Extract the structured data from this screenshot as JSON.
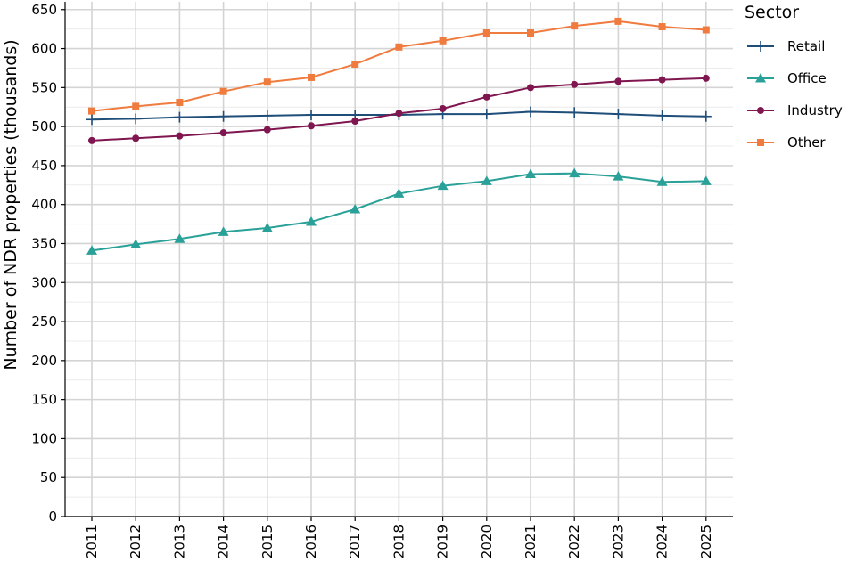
{
  "chart_data": {
    "type": "line",
    "title": "",
    "xlabel": "",
    "ylabel": "Number of NDR properties (thousands)",
    "x": [
      "2011",
      "2012",
      "2013",
      "2014",
      "2015",
      "2016",
      "2017",
      "2018",
      "2019",
      "2020",
      "2021",
      "2022",
      "2023",
      "2024",
      "2025"
    ],
    "ylim": [
      0,
      660
    ],
    "yticks": [
      "0",
      "50",
      "100",
      "150",
      "200",
      "250",
      "300",
      "350",
      "400",
      "450",
      "500",
      "550",
      "600",
      "650"
    ],
    "grid": true,
    "legend": {
      "title": "Sector",
      "position": "right"
    },
    "series": [
      {
        "name": "Retail",
        "color": "#1f4e79",
        "marker": "plus",
        "values": [
          509,
          510,
          512,
          513,
          514,
          515,
          515,
          515,
          516,
          516,
          519,
          518,
          516,
          514,
          513
        ]
      },
      {
        "name": "Office",
        "color": "#2aa198",
        "marker": "triangle",
        "values": [
          341,
          349,
          356,
          365,
          370,
          378,
          394,
          414,
          424,
          430,
          439,
          440,
          436,
          429,
          430
        ]
      },
      {
        "name": "Industry",
        "color": "#801650",
        "marker": "circle",
        "values": [
          482,
          485,
          488,
          492,
          496,
          501,
          507,
          517,
          523,
          538,
          550,
          554,
          558,
          560,
          562
        ]
      },
      {
        "name": "Other",
        "color": "#f07b3f",
        "marker": "square",
        "values": [
          520,
          526,
          531,
          545,
          557,
          563,
          580,
          602,
          610,
          620,
          620,
          629,
          635,
          628,
          624
        ]
      }
    ]
  }
}
